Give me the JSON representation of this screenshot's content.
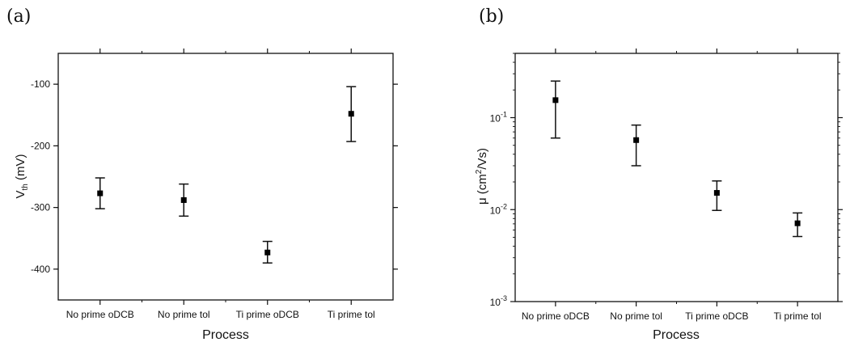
{
  "panels": {
    "a": {
      "label": "(a)"
    },
    "b": {
      "label": "(b)"
    }
  },
  "chart_data": [
    {
      "type": "scatter",
      "panel": "(a)",
      "categories": [
        "No prime oDCB",
        "No prime tol",
        "Ti prime oDCB",
        "Ti prime tol"
      ],
      "values": [
        -277,
        -288,
        -373,
        -148
      ],
      "error_low": [
        -302,
        -314,
        -390,
        -193
      ],
      "error_high": [
        -252,
        -262,
        -355,
        -104
      ],
      "xlabel": "Process",
      "ylabel": {
        "main": "V",
        "sub": "th",
        "unit": " (mV)"
      },
      "ylim": [
        -450,
        -50
      ],
      "yticks": [
        -100,
        -200,
        -300,
        -400
      ],
      "ytick_labels": [
        "-100",
        "-200",
        "-300",
        "-400"
      ],
      "marker_color": "#000000"
    },
    {
      "type": "scatter",
      "panel": "(b)",
      "categories": [
        "No prime oDCB",
        "No prime tol",
        "Ti prime oDCB",
        "Ti prime tol"
      ],
      "values": [
        0.155,
        0.057,
        0.0152,
        0.0071
      ],
      "error_low": [
        0.06,
        0.03,
        0.0098,
        0.0051
      ],
      "error_high": [
        0.25,
        0.083,
        0.0205,
        0.0092
      ],
      "xlabel": "Process",
      "ylabel": {
        "main": "μ (cm",
        "sup": "2",
        "unit": "/Vs)"
      },
      "yscale": "log",
      "ylim": [
        0.001,
        0.5
      ],
      "yticks": [
        0.1,
        0.01,
        0.001
      ],
      "ytick_labels": [
        {
          "base": "10",
          "exp": "-1"
        },
        {
          "base": "10",
          "exp": "-2"
        },
        {
          "base": "10",
          "exp": "-3"
        }
      ],
      "marker_color": "#000000"
    }
  ]
}
